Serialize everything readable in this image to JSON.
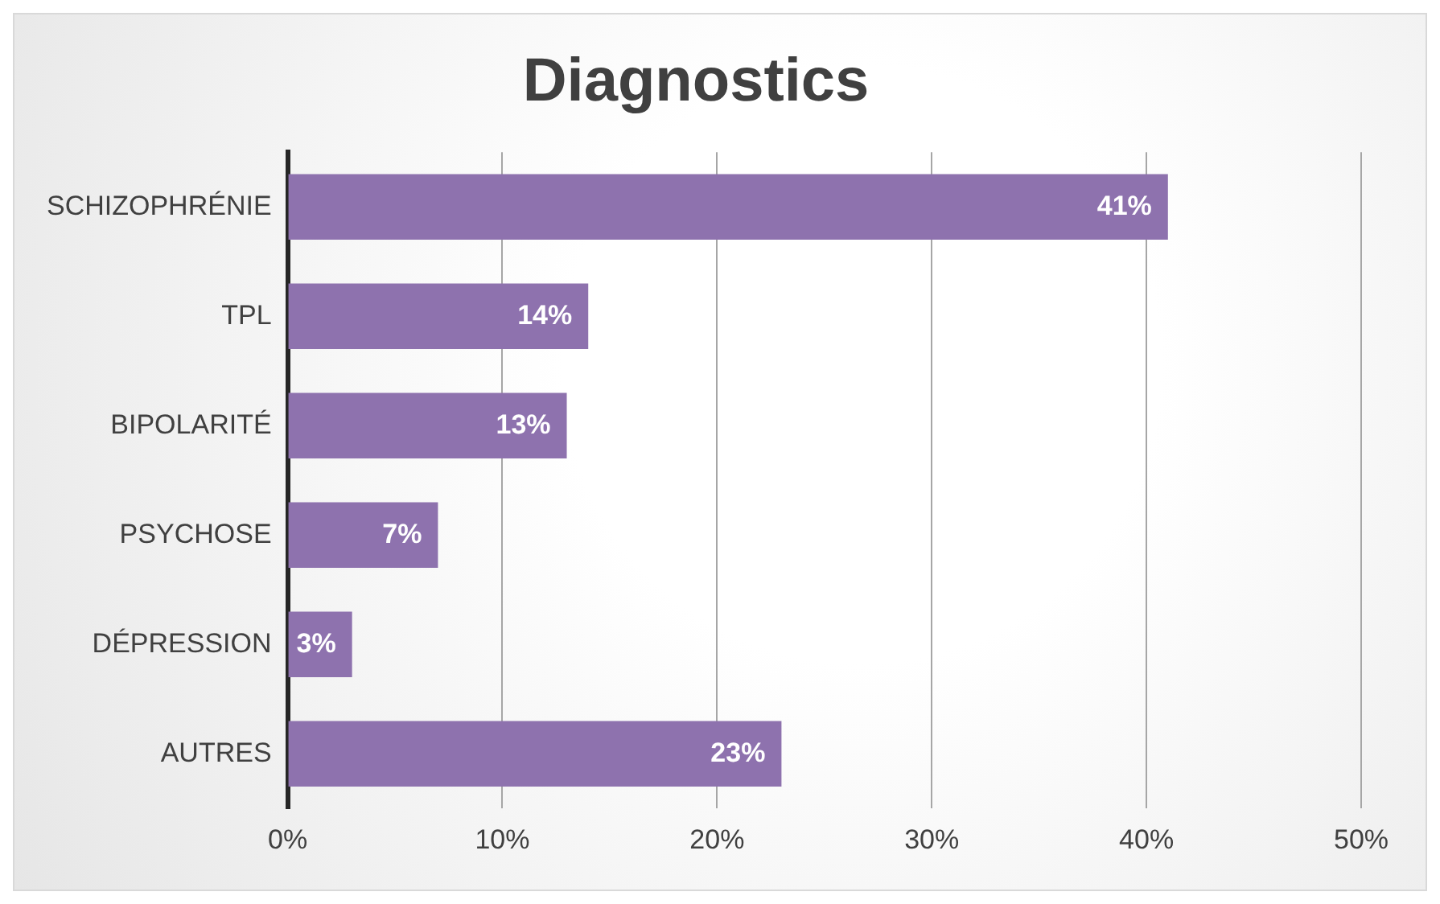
{
  "chart_data": {
    "type": "bar",
    "orientation": "horizontal",
    "title": "Diagnostics",
    "categories": [
      "SCHIZOPHRÉNIE",
      "TPL",
      "BIPOLARITÉ",
      "PSYCHOSE",
      "DÉPRESSION",
      "AUTRES"
    ],
    "values": [
      41,
      14,
      13,
      7,
      3,
      23
    ],
    "value_labels": [
      "41%",
      "14%",
      "13%",
      "7%",
      "3%",
      "23%"
    ],
    "color": "#8e72ae",
    "xlim": [
      0,
      50
    ],
    "xticks": [
      {
        "value": 0,
        "label": "0%"
      },
      {
        "value": 10,
        "label": "10%"
      },
      {
        "value": 20,
        "label": "20%"
      },
      {
        "value": 30,
        "label": "30%"
      },
      {
        "value": 40,
        "label": "40%"
      },
      {
        "value": 50,
        "label": "50%"
      }
    ],
    "grid": "x",
    "legend": false
  }
}
